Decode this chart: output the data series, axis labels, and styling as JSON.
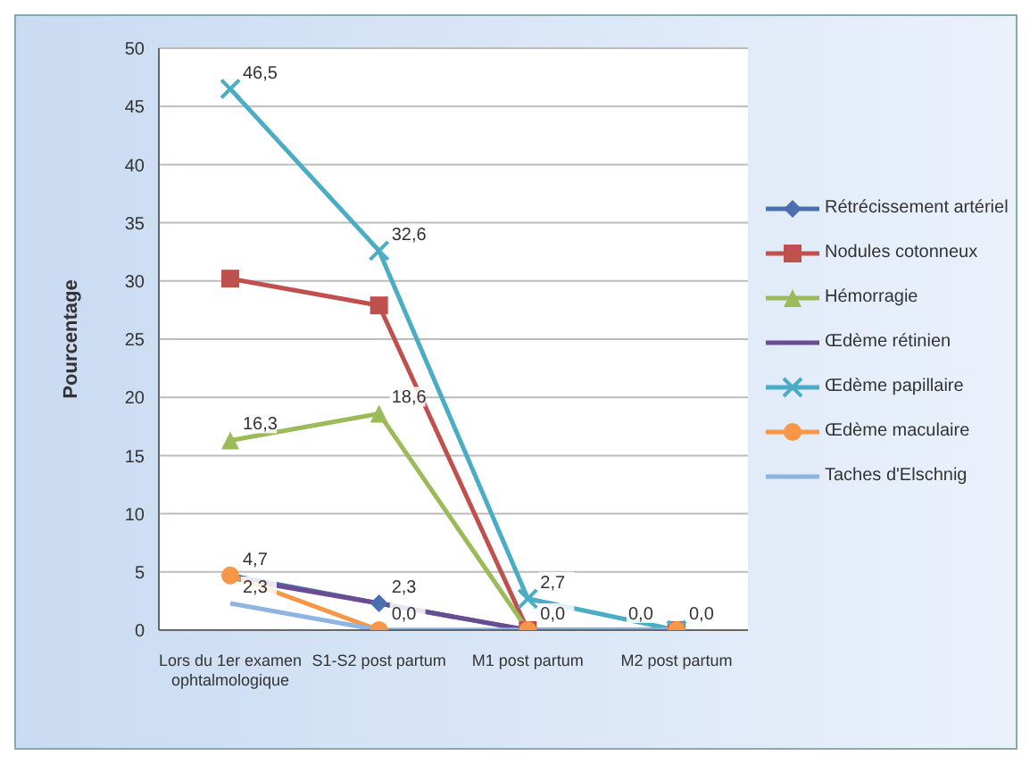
{
  "chart_data": {
    "type": "line",
    "ylabel": "Pourcentage",
    "categories": [
      "Lors du 1er examen ophtalmologique",
      "S1-S2 post partum",
      "M1 post partum",
      "M2 post partum"
    ],
    "series": [
      {
        "name": "Rétrécissement artériel",
        "color": "#4a6fb0",
        "marker": "diamond",
        "values": [
          4.7,
          2.3,
          0,
          0
        ],
        "value_labels": [
          null,
          "2,3",
          null,
          null
        ]
      },
      {
        "name": "Nodules cotonneux",
        "color": "#c0504d",
        "marker": "square",
        "values": [
          30.2,
          27.9,
          0,
          0
        ]
      },
      {
        "name": "Hémorragie",
        "color": "#9bbb59",
        "marker": "triangle",
        "values": [
          16.3,
          18.6,
          0,
          0
        ],
        "value_labels": [
          "16,3",
          "18,6",
          null,
          null
        ]
      },
      {
        "name": "Œdème rétinien",
        "color": "#6a4c93",
        "marker": "none",
        "values": [
          4.5,
          2.3,
          0,
          0
        ]
      },
      {
        "name": "Œdème papillaire",
        "color": "#4bacc6",
        "marker": "cross",
        "values": [
          46.5,
          32.6,
          2.7,
          0
        ],
        "value_labels": [
          "46,5",
          "32,6",
          "2,7",
          "0,0"
        ]
      },
      {
        "name": "Œdème maculaire",
        "color": "#f79646",
        "marker": "circle",
        "values": [
          4.7,
          0,
          0,
          0
        ],
        "value_labels": [
          "4,7",
          "0,0",
          "0,0",
          null
        ]
      },
      {
        "name": "Taches d'Elschnig",
        "color": "#8eb4e3",
        "marker": "none",
        "values": [
          2.3,
          0,
          0,
          0
        ],
        "value_labels": [
          "2,3",
          null,
          null,
          "0,0"
        ]
      }
    ],
    "ylim": [
      0,
      50
    ],
    "yticks": [
      0,
      5,
      10,
      15,
      20,
      25,
      30,
      35,
      40,
      45,
      50
    ],
    "grid": "y",
    "legend": "right"
  }
}
